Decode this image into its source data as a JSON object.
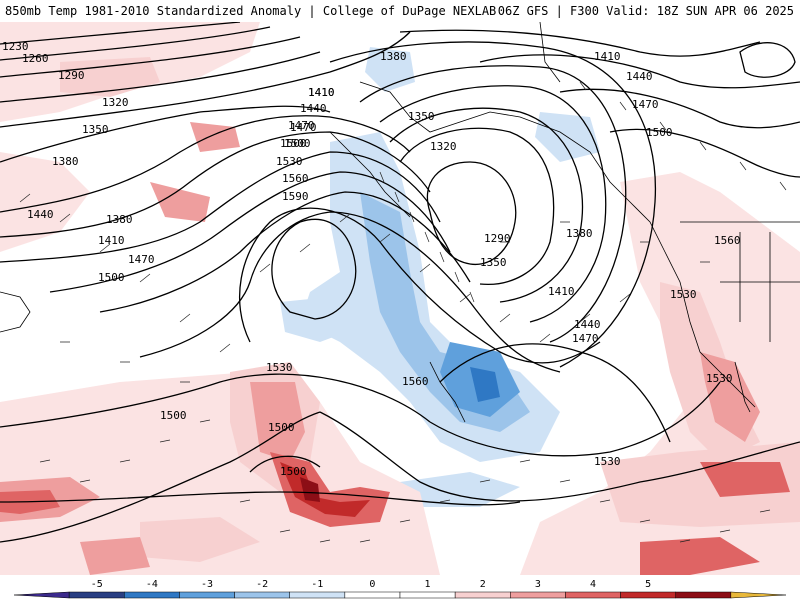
{
  "header": {
    "left": "850mb Temp 1981-2010 Standardized Anomaly | College of DuPage NEXLAB",
    "right": "06Z GFS | F300 Valid: 18Z SUN APR 06 2025"
  },
  "isobar_labels": [
    "1230",
    "1260",
    "1290",
    "1320",
    "1350",
    "1380",
    "1440",
    "1410",
    "1470",
    "1500",
    "1380",
    "1410",
    "1470",
    "1500",
    "1440",
    "1410",
    "1470",
    "1500",
    "1530",
    "1560",
    "1590",
    "1380",
    "1350",
    "1320",
    "1290",
    "1350",
    "1410",
    "1440",
    "1470",
    "1380",
    "1410",
    "1440",
    "1470",
    "1500",
    "1560",
    "1530",
    "1530",
    "1560",
    "1530",
    "1500",
    "1500",
    "1500",
    "1530"
  ],
  "colorbar": {
    "ticks": [
      "-5",
      "-4",
      "-3",
      "-2",
      "-1",
      "0",
      "1",
      "2",
      "3",
      "4",
      "5"
    ],
    "colors": [
      "#3b2a8c",
      "#283e82",
      "#2f78c4",
      "#5fa0dc",
      "#9cc4ea",
      "#cfe2f5",
      "#ffffff",
      "#ffffff",
      "#f7d0d0",
      "#ee9e9e",
      "#df6464",
      "#c12a2a",
      "#8c0e16",
      "#e8b83a"
    ]
  }
}
